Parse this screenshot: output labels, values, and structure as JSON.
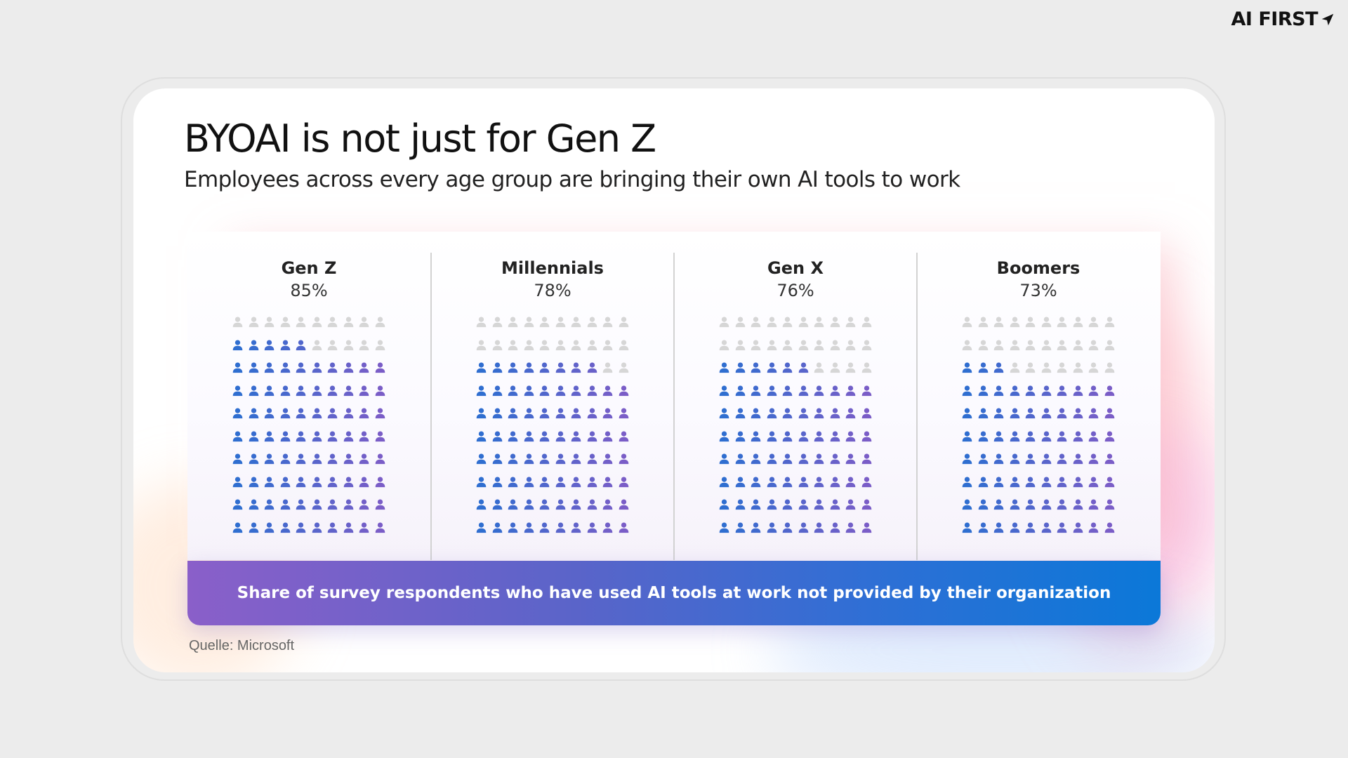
{
  "brand": {
    "label": "AI FIRST",
    "icon": "arrow-icon"
  },
  "source": "Quelle: Microsoft",
  "colors": {
    "filled_start": "#2f6ed0",
    "filled_end": "#7a5dc7",
    "empty": "#d6d6d6",
    "banner_start": "#8a5fc9",
    "banner_end": "#0b78d8"
  },
  "chart_data": {
    "type": "pictogram",
    "title": "BYOAI is not just for Gen Z",
    "subtitle": "Employees across every age group are bringing their own AI tools to work",
    "caption": "Share of survey respondents who have used AI tools at work not provided by their organization",
    "units_per_group": 100,
    "grid": {
      "rows": 10,
      "cols": 10
    },
    "categories": [
      "Gen Z",
      "Millennials",
      "Gen X",
      "Boomers"
    ],
    "labels": [
      "85%",
      "78%",
      "76%",
      "73%"
    ],
    "values": [
      85,
      78,
      76,
      73
    ]
  }
}
